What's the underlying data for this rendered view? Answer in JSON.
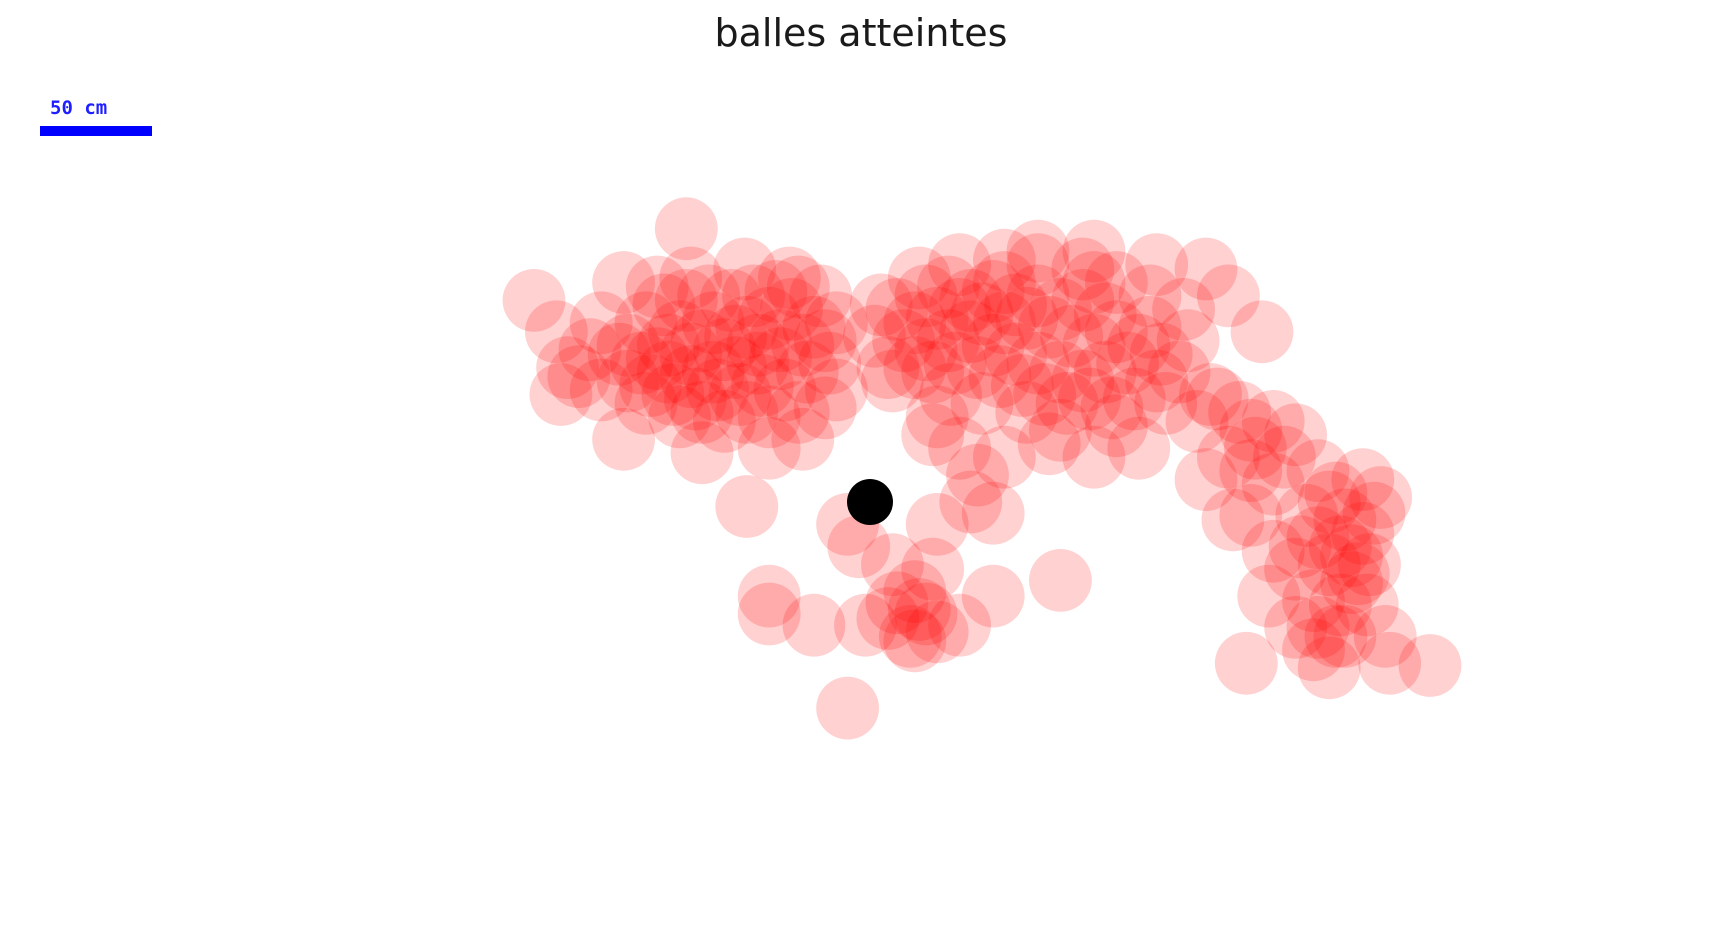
{
  "title": "balles atteintes",
  "scale_bar": {
    "label": "50 cm",
    "color": "#0000ff"
  },
  "chart_data": {
    "type": "scatter",
    "title": "balles atteintes",
    "xlabel": "",
    "ylabel": "",
    "units": "cm",
    "xlim": [
      -390,
      390
    ],
    "ylim": [
      -190,
      230
    ],
    "grid": false,
    "axes_visible": false,
    "scale_bar": {
      "length": 50,
      "unit": "cm"
    },
    "target": {
      "name": "cochonnet",
      "x": 0,
      "y": 0,
      "color": "#000000"
    },
    "series": [
      {
        "color": "#ff0000",
        "opacity": 0.18,
        "marker_radius_cm": 14,
        "points": [
          [
            -55,
            78
          ],
          [
            -45,
            82
          ],
          [
            -35,
            86
          ],
          [
            -40,
            72
          ],
          [
            -50,
            70
          ],
          [
            -60,
            74
          ],
          [
            -65,
            68
          ],
          [
            -70,
            80
          ],
          [
            -75,
            72
          ],
          [
            -80,
            66
          ],
          [
            -85,
            76
          ],
          [
            -90,
            70
          ],
          [
            -95,
            64
          ],
          [
            -90,
            58
          ],
          [
            -80,
            56
          ],
          [
            -70,
            58
          ],
          [
            -60,
            60
          ],
          [
            -50,
            62
          ],
          [
            -40,
            64
          ],
          [
            -30,
            70
          ],
          [
            -25,
            78
          ],
          [
            -20,
            72
          ],
          [
            -15,
            80
          ],
          [
            -28,
            58
          ],
          [
            -38,
            50
          ],
          [
            -48,
            52
          ],
          [
            -58,
            48
          ],
          [
            -68,
            50
          ],
          [
            -78,
            46
          ],
          [
            -88,
            48
          ],
          [
            -98,
            52
          ],
          [
            -102,
            62
          ],
          [
            -108,
            70
          ],
          [
            -100,
            80
          ],
          [
            -92,
            88
          ],
          [
            -82,
            90
          ],
          [
            -72,
            92
          ],
          [
            -62,
            90
          ],
          [
            -52,
            92
          ],
          [
            -42,
            94
          ],
          [
            -32,
            96
          ],
          [
            -22,
            92
          ],
          [
            -18,
            62
          ],
          [
            -15,
            50
          ],
          [
            -20,
            42
          ],
          [
            -32,
            40
          ],
          [
            -45,
            38
          ],
          [
            -55,
            40
          ],
          [
            -65,
            36
          ],
          [
            -75,
            40
          ],
          [
            -85,
            38
          ],
          [
            -100,
            44
          ],
          [
            -108,
            54
          ],
          [
            -112,
            66
          ],
          [
            -95,
            96
          ],
          [
            -120,
            80
          ],
          [
            -125,
            68
          ],
          [
            -130,
            56
          ],
          [
            -135,
            60
          ],
          [
            -120,
            50
          ],
          [
            -140,
            76
          ],
          [
            -150,
            90
          ],
          [
            -110,
            98
          ],
          [
            -80,
            100
          ],
          [
            -56,
            104
          ],
          [
            -36,
            100
          ],
          [
            -82,
            122
          ],
          [
            -30,
            28
          ],
          [
            -45,
            24
          ],
          [
            -75,
            22
          ],
          [
            -110,
            28
          ],
          [
            -138,
            48
          ],
          [
            25,
            92
          ],
          [
            35,
            96
          ],
          [
            45,
            90
          ],
          [
            55,
            94
          ],
          [
            65,
            88
          ],
          [
            75,
            92
          ],
          [
            85,
            86
          ],
          [
            95,
            90
          ],
          [
            105,
            84
          ],
          [
            110,
            76
          ],
          [
            100,
            70
          ],
          [
            90,
            74
          ],
          [
            80,
            78
          ],
          [
            70,
            82
          ],
          [
            60,
            80
          ],
          [
            50,
            84
          ],
          [
            40,
            86
          ],
          [
            30,
            82
          ],
          [
            20,
            80
          ],
          [
            12,
            86
          ],
          [
            15,
            72
          ],
          [
            25,
            68
          ],
          [
            35,
            72
          ],
          [
            45,
            76
          ],
          [
            55,
            70
          ],
          [
            65,
            66
          ],
          [
            75,
            62
          ],
          [
            85,
            58
          ],
          [
            95,
            54
          ],
          [
            105,
            58
          ],
          [
            115,
            62
          ],
          [
            120,
            70
          ],
          [
            125,
            78
          ],
          [
            130,
            66
          ],
          [
            128,
            54
          ],
          [
            118,
            46
          ],
          [
            108,
            42
          ],
          [
            98,
            46
          ],
          [
            88,
            44
          ],
          [
            78,
            48
          ],
          [
            68,
            52
          ],
          [
            58,
            56
          ],
          [
            48,
            60
          ],
          [
            38,
            62
          ],
          [
            28,
            58
          ],
          [
            20,
            60
          ],
          [
            70,
            40
          ],
          [
            85,
            32
          ],
          [
            110,
            34
          ],
          [
            132,
            44
          ],
          [
            138,
            58
          ],
          [
            142,
            72
          ],
          [
            140,
            86
          ],
          [
            125,
            92
          ],
          [
            110,
            98
          ],
          [
            95,
            104
          ],
          [
            75,
            106
          ],
          [
            60,
            108
          ],
          [
            40,
            106
          ],
          [
            22,
            100
          ],
          [
            5,
            88
          ],
          [
            2,
            74
          ],
          [
            8,
            60
          ],
          [
            36,
            48
          ],
          [
            50,
            44
          ],
          [
            146,
            36
          ],
          [
            152,
            48
          ],
          [
            120,
            24
          ],
          [
            100,
            20
          ],
          [
            80,
            26
          ],
          [
            40,
            24
          ],
          [
            30,
            38
          ],
          [
            28,
            30
          ],
          [
            75,
            112
          ],
          [
            100,
            112
          ],
          [
            160,
            92
          ],
          [
            150,
            104
          ],
          [
            128,
            106
          ],
          [
            100,
            98
          ],
          [
            60,
            98
          ],
          [
            10,
            54
          ],
          [
            175,
            76
          ],
          [
            155,
            46
          ],
          [
            165,
            40
          ],
          [
            170,
            32
          ],
          [
            180,
            36
          ],
          [
            172,
            24
          ],
          [
            185,
            20
          ],
          [
            190,
            30
          ],
          [
            170,
            14
          ],
          [
            180,
            8
          ],
          [
            150,
            10
          ],
          [
            160,
            20
          ],
          [
            200,
            14
          ],
          [
            205,
            0
          ],
          [
            200,
            -16
          ],
          [
            190,
            -30
          ],
          [
            198,
            -44
          ],
          [
            210,
            -46
          ],
          [
            215,
            -36
          ],
          [
            215,
            -24
          ],
          [
            212,
            -8
          ],
          [
            208,
            4
          ],
          [
            195,
            -6
          ],
          [
            192,
            -20
          ],
          [
            220,
            -14
          ],
          [
            225,
            -5
          ],
          [
            210,
            -20
          ],
          [
            205,
            -28
          ],
          [
            218,
            -32
          ],
          [
            222,
            -46
          ],
          [
            212,
            -60
          ],
          [
            200,
            -56
          ],
          [
            198,
            -66
          ],
          [
            205,
            -74
          ],
          [
            180,
            -22
          ],
          [
            170,
            -6
          ],
          [
            162,
            -8
          ],
          [
            178,
            -42
          ],
          [
            190,
            -56
          ],
          [
            168,
            -72
          ],
          [
            230,
            -60
          ],
          [
            223,
            -28
          ],
          [
            208,
            -60
          ],
          [
            250,
            -73
          ],
          [
            232,
            -72
          ],
          [
            220,
            10
          ],
          [
            228,
            2
          ],
          [
            -25,
            -55
          ],
          [
            -45,
            -50
          ],
          [
            -55,
            -2
          ],
          [
            -10,
            -10
          ],
          [
            -5,
            -20
          ],
          [
            10,
            -28
          ],
          [
            20,
            -40
          ],
          [
            25,
            -50
          ],
          [
            18,
            -60
          ],
          [
            30,
            -58
          ],
          [
            22,
            -48
          ],
          [
            12,
            -45
          ],
          [
            8,
            -52
          ],
          [
            40,
            -55
          ],
          [
            55,
            -42
          ],
          [
            85,
            -35
          ],
          [
            55,
            -5
          ],
          [
            60,
            20
          ],
          [
            48,
            12
          ],
          [
            45,
            0
          ],
          [
            30,
            -10
          ],
          [
            -45,
            -42
          ],
          [
            -10,
            -92
          ],
          [
            20,
            -62
          ],
          [
            -2,
            -55
          ],
          [
            28,
            -30
          ]
        ]
      }
    ]
  }
}
